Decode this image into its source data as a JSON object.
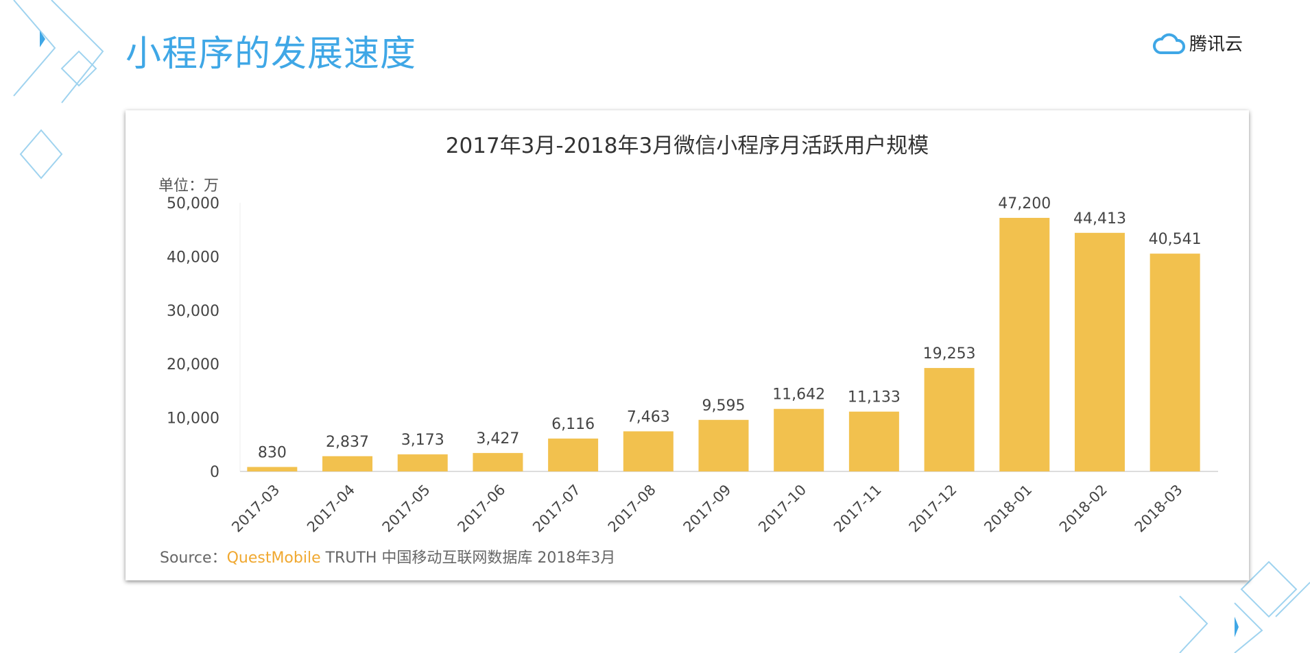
{
  "page_title": "小程序的发展速度",
  "logo_text": "腾讯云",
  "colors": {
    "title": "#3fa7e6",
    "bar": "#f2c14e",
    "source_brand": "#f0a830"
  },
  "chart_data": {
    "type": "bar",
    "title": "2017年3月-2018年3月微信小程序月活跃用户规模",
    "unit_label": "单位：万",
    "categories": [
      "2017-03",
      "2017-04",
      "2017-05",
      "2017-06",
      "2017-07",
      "2017-08",
      "2017-09",
      "2017-10",
      "2017-11",
      "2017-12",
      "2018-01",
      "2018-02",
      "2018-03"
    ],
    "values": [
      830,
      2837,
      3173,
      3427,
      6116,
      7463,
      9595,
      11642,
      11133,
      19253,
      47200,
      44413,
      40541
    ],
    "data_labels": [
      "830",
      "2,837",
      "3,173",
      "3,427",
      "6,116",
      "7,463",
      "9,595",
      "11,642",
      "11,133",
      "19,253",
      "47,200",
      "44,413",
      "40,541"
    ],
    "yticks": [
      "0",
      "10,000",
      "20,000",
      "30,000",
      "40,000",
      "50,000"
    ],
    "ylim": [
      0,
      50000
    ],
    "grid": false,
    "legend": "none"
  },
  "source": {
    "prefix": "Source：",
    "brand": "QuestMobile",
    "rest": " TRUTH 中国移动互联网数据库 2018年3月"
  }
}
